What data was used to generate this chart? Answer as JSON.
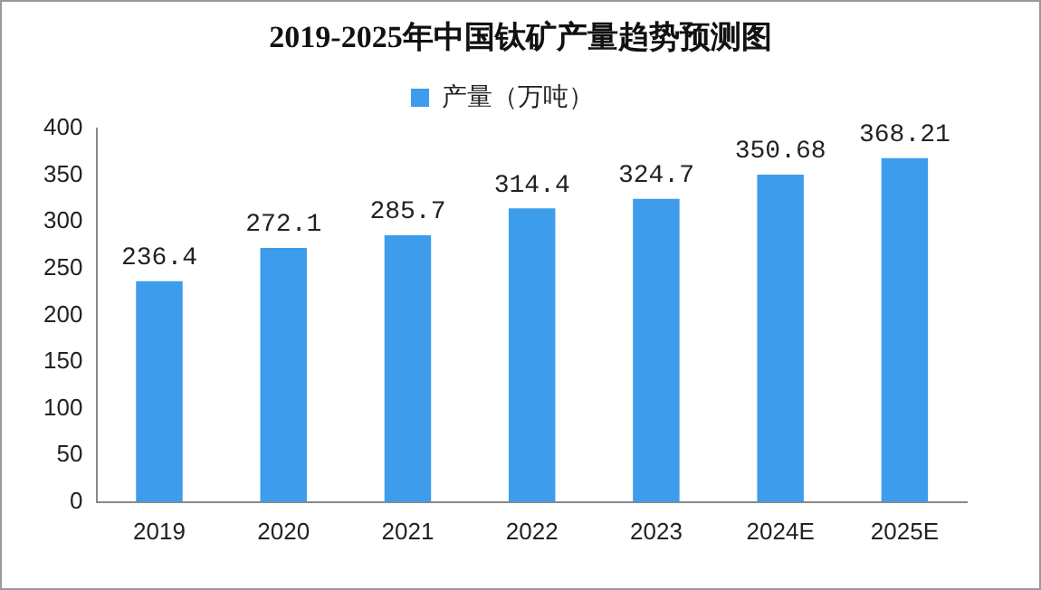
{
  "chart_data": {
    "type": "bar",
    "title": "2019-2025年中国钛矿产量趋势预测图",
    "categories": [
      "2019",
      "2020",
      "2021",
      "2022",
      "2023",
      "2024E",
      "2025E"
    ],
    "series": [
      {
        "name": "产量（万吨）",
        "color": "#3d9cec",
        "values": [
          236.4,
          272.1,
          285.7,
          314.4,
          324.7,
          350.68,
          368.21
        ]
      }
    ],
    "ylim": [
      0,
      400
    ],
    "yticks": [
      0,
      50,
      100,
      150,
      200,
      250,
      300,
      350,
      400
    ],
    "grid": false,
    "legend": "top",
    "data_labels": true
  }
}
